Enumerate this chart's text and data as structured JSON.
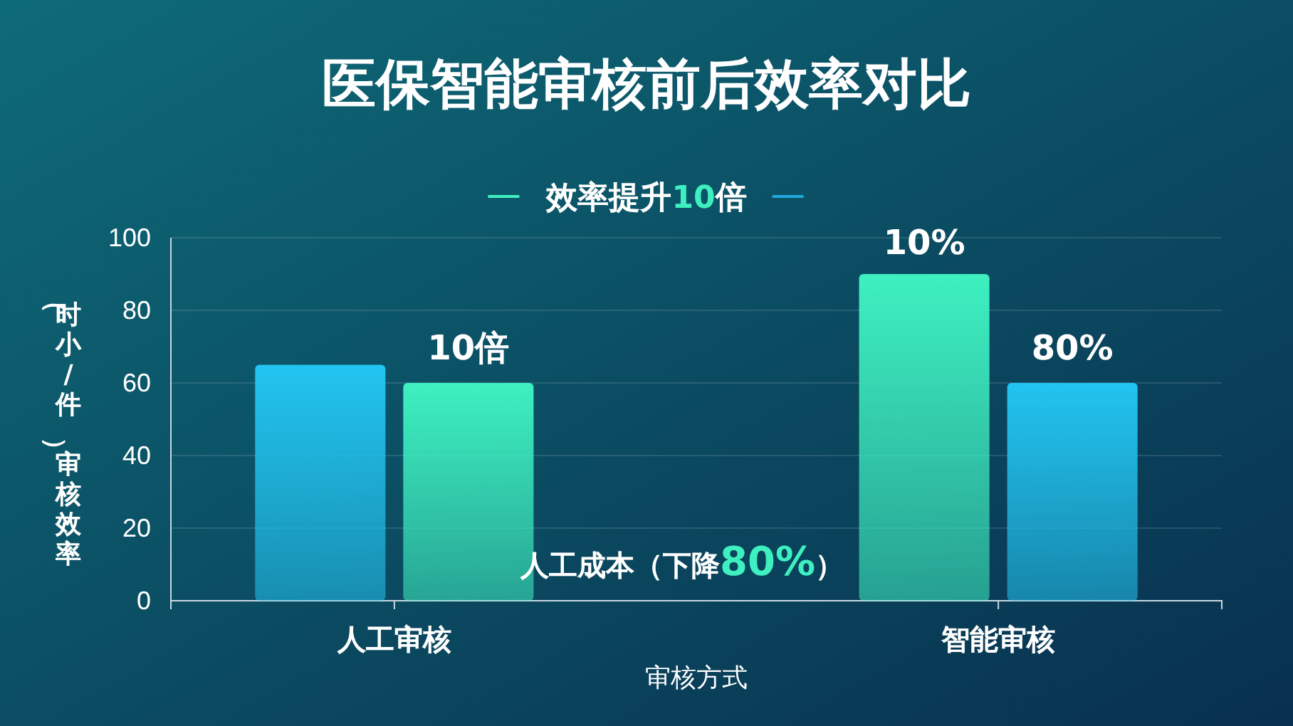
{
  "chart_data": {
    "type": "bar",
    "title": "医保智能审核前后效率对比",
    "subtitle": "效率提升10倍",
    "xlabel": "审核方式",
    "ylabel": "（时小/件）审核效率",
    "categories": [
      "人工审核",
      "智能审核"
    ],
    "series": [
      {
        "colors": [
          "#22c4f0",
          "#3ef0c0"
        ],
        "values": [
          65,
          90
        ]
      },
      {
        "colors": [
          "#3ef0c0",
          "#22c4f0"
        ],
        "values": [
          60,
          60
        ]
      }
    ],
    "ylim": [
      0,
      100
    ],
    "yticks": [
      0,
      20,
      40,
      60,
      80,
      100
    ],
    "grid": "y",
    "annotations": [
      "10倍",
      "10%",
      "80%",
      "人工成本（下降80%）"
    ]
  }
}
